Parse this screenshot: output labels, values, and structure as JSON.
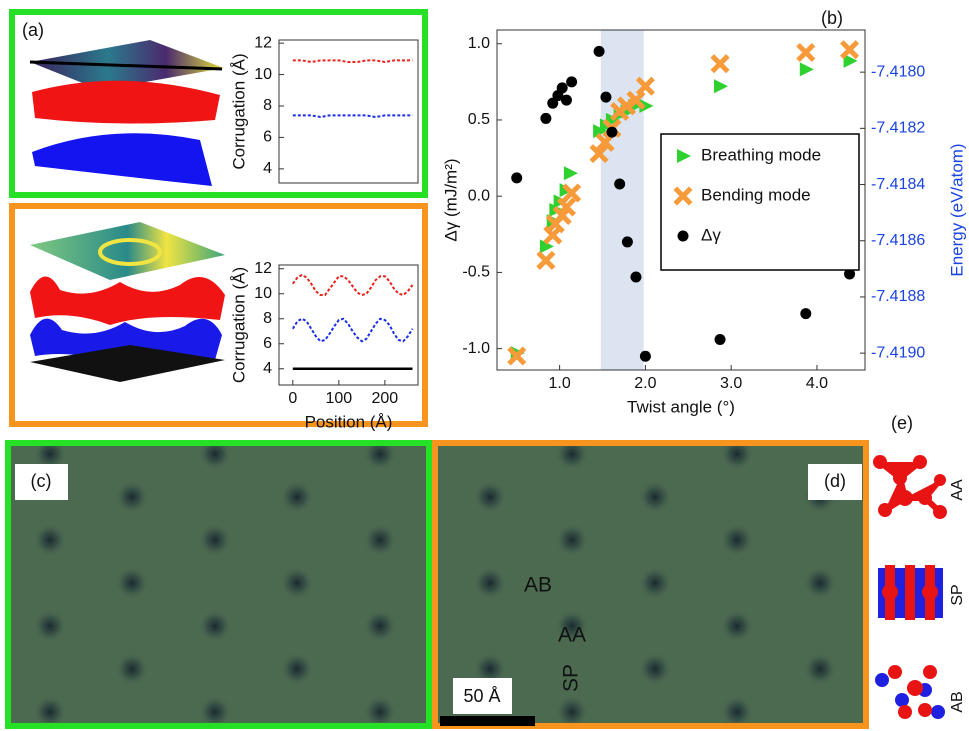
{
  "panels": {
    "a": {
      "label": "(a)"
    },
    "b": {
      "label": "(b)"
    },
    "c": {
      "label": "(c)"
    },
    "d": {
      "label": "(d)",
      "annotations": [
        "AB",
        "AA",
        "SP"
      ],
      "scale_bar": "50 Å"
    },
    "e": {
      "label": "(e)",
      "structures": [
        "AA",
        "SP",
        "AB"
      ]
    }
  },
  "chart_data": [
    {
      "type": "line",
      "ylabel": "Corrugation (Å)",
      "xlim": [
        -30,
        272
      ],
      "ylim": [
        3.1,
        12.2
      ],
      "yticks": [
        4,
        6,
        8,
        10,
        12
      ],
      "series": [
        {
          "color": "#e8241c",
          "linestyle": "dashed",
          "x": [
            0,
            20,
            40,
            60,
            80,
            100,
            120,
            140,
            160,
            180,
            200,
            220,
            240,
            260
          ],
          "values": [
            10.9,
            10.9,
            10.8,
            10.9,
            10.9,
            10.9,
            10.8,
            10.8,
            10.9,
            10.9,
            10.8,
            10.9,
            10.9,
            10.9
          ]
        },
        {
          "color": "#1c2ee8",
          "linestyle": "dashed",
          "x": [
            0,
            20,
            40,
            60,
            80,
            100,
            120,
            140,
            160,
            180,
            200,
            220,
            240,
            260
          ],
          "values": [
            7.4,
            7.4,
            7.4,
            7.3,
            7.4,
            7.4,
            7.4,
            7.4,
            7.4,
            7.3,
            7.4,
            7.4,
            7.4,
            7.4
          ]
        }
      ]
    },
    {
      "type": "line",
      "ylabel": "Corrugation (Å)",
      "xlabel": "Position (Å)",
      "xlim": [
        -30,
        272
      ],
      "ylim": [
        2.7,
        12.3
      ],
      "yticks": [
        4,
        6,
        8,
        10,
        12
      ],
      "xticks": [
        0,
        100,
        200
      ],
      "series": [
        {
          "color": "#e8241c",
          "linestyle": "dashed",
          "x": [
            0,
            10,
            20,
            30,
            40,
            50,
            60,
            70,
            80,
            90,
            100,
            110,
            120,
            130,
            140,
            150,
            160,
            170,
            180,
            190,
            200,
            210,
            220,
            230,
            240,
            250,
            260
          ],
          "values": [
            10.8,
            11.3,
            11.5,
            11.3,
            10.8,
            10.2,
            9.9,
            9.9,
            10.4,
            10.9,
            11.4,
            11.4,
            11.1,
            10.6,
            10.1,
            9.9,
            10.0,
            10.5,
            11.1,
            11.4,
            11.4,
            11.0,
            10.4,
            10.0,
            9.9,
            10.2,
            10.7
          ]
        },
        {
          "color": "#1c2ee8",
          "linestyle": "dashed",
          "x": [
            0,
            10,
            20,
            30,
            40,
            50,
            60,
            70,
            80,
            90,
            100,
            110,
            120,
            130,
            140,
            150,
            160,
            170,
            180,
            190,
            200,
            210,
            220,
            230,
            240,
            250,
            260
          ],
          "values": [
            7.2,
            7.8,
            8.0,
            7.8,
            7.2,
            6.6,
            6.2,
            6.3,
            6.8,
            7.4,
            7.9,
            8.0,
            7.6,
            7.0,
            6.5,
            6.2,
            6.4,
            7.0,
            7.6,
            8.0,
            7.9,
            7.5,
            6.8,
            6.3,
            6.2,
            6.6,
            7.2
          ]
        },
        {
          "color": "#000000",
          "linestyle": "solid",
          "x": [
            0,
            260
          ],
          "values": [
            4.0,
            4.0
          ]
        }
      ]
    },
    {
      "type": "scatter",
      "xlabel": "Twist angle (°)",
      "ylabel": "Δγ (mJ/m²)",
      "y2label": "Energy (eV/atom)",
      "y2color": "#1a44e0",
      "xlim": [
        0.27,
        4.56
      ],
      "ylim": [
        -1.14,
        1.09
      ],
      "y2lim": [
        -7.41906,
        -7.41785
      ],
      "xticks": [
        {
          "value": 1,
          "label": "1.0"
        },
        {
          "value": 2,
          "label": "2.0"
        },
        {
          "value": 3,
          "label": "3.0"
        },
        {
          "value": 4,
          "label": "4.0"
        }
      ],
      "yticks": [
        {
          "value": -1,
          "label": "-1.0"
        },
        -0.5,
        {
          "value": 0,
          "label": "0.0"
        },
        0.5,
        {
          "value": 1,
          "label": "1.0"
        }
      ],
      "y2ticks": [
        {
          "value": -7.419,
          "label": "-7.4190"
        },
        -7.4188,
        -7.4186,
        -7.4184,
        -7.4182,
        {
          "value": -7.418,
          "label": "-7.4180"
        }
      ],
      "shade": [
        1.48,
        1.98
      ],
      "shade_color": "#dce4f2",
      "legend": "center right",
      "series": [
        {
          "name": "Breathing mode",
          "color": "#2ed12e",
          "marker": "triangle",
          "axis": "y2",
          "x": [
            0.5,
            0.84,
            0.92,
            0.95,
            1.0,
            1.07,
            1.12,
            1.46,
            1.54,
            1.61,
            1.7,
            1.78,
            1.87,
            2.0,
            2.87,
            3.87,
            4.38
          ],
          "values": [
            -7.419,
            -7.41862,
            -7.41853,
            -7.41849,
            -7.41846,
            -7.41842,
            -7.41836,
            -7.41821,
            -7.41819,
            -7.41817,
            -7.41815,
            -7.41814,
            -7.41812,
            -7.41812,
            -7.41805,
            -7.41799,
            -7.41796
          ]
        },
        {
          "name": "Bending mode",
          "color": "#f79a3a",
          "marker": "x",
          "axis": "y2",
          "x": [
            0.5,
            0.84,
            0.92,
            0.95,
            1.03,
            1.08,
            1.14,
            1.46,
            1.53,
            1.61,
            1.7,
            1.78,
            1.89,
            2.0,
            2.87,
            3.87,
            4.38
          ],
          "values": [
            -7.41901,
            -7.41867,
            -7.41858,
            -7.41854,
            -7.41851,
            -7.41848,
            -7.41843,
            -7.41829,
            -7.41825,
            -7.4182,
            -7.41814,
            -7.41812,
            -7.4181,
            -7.41805,
            -7.41797,
            -7.41793,
            -7.41792
          ]
        },
        {
          "name": "Δγ",
          "color": "#000000",
          "marker": "circle",
          "x": [
            0.5,
            0.84,
            0.92,
            0.98,
            1.03,
            1.08,
            1.14,
            1.46,
            1.54,
            1.61,
            1.7,
            1.79,
            1.89,
            2.0,
            2.87,
            3.87,
            4.38
          ],
          "values": [
            0.12,
            0.51,
            0.61,
            0.66,
            0.71,
            0.63,
            0.75,
            0.95,
            0.65,
            0.42,
            0.08,
            -0.3,
            -0.53,
            -1.05,
            -0.94,
            -0.77,
            -0.51
          ]
        }
      ]
    }
  ]
}
